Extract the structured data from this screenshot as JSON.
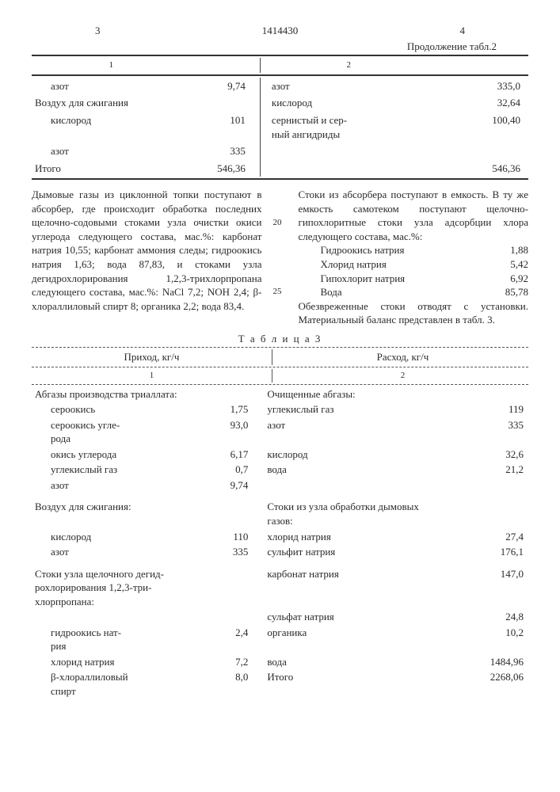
{
  "head": {
    "p3": "3",
    "pid": "1414430",
    "p4": "4"
  },
  "cont_label": "Продолжение табл.2",
  "t2": {
    "h1": "1",
    "h2": "2",
    "rows_left": [
      {
        "label": "азот",
        "indent": true,
        "val": "9,74"
      },
      {
        "label": "Воздух для сжигания",
        "indent": false,
        "val": ""
      },
      {
        "label": "кислород",
        "indent": true,
        "val": "101"
      },
      {
        "label": "азот",
        "indent": true,
        "val": "335"
      },
      {
        "label": "Итого",
        "indent": false,
        "val": "546,36"
      }
    ],
    "rows_right": [
      {
        "label": "азот",
        "val": "335,0"
      },
      {
        "label": "кислород",
        "val": "32,64"
      },
      {
        "label": "сернистый и сер-\nный ангидриды",
        "val": "100,40"
      },
      {
        "label": "",
        "val": ""
      },
      {
        "label": "",
        "val": "546,36"
      }
    ]
  },
  "para_left": "Дымовые газы из циклонной топки поступают в абсорбер, где происходит обработка последних щелочно-содовыми стоками узла очистки окиси углерода следующего состава, мас.%: карбонат натрия 10,55; карбонат аммония следы; гидроокись натрия 1,63; вода 87,83, и стоками узла дегидрохлорирования 1,2,3-трихлорпропана следующего состава, мас.%: NaCl 7,2; NOH 2,4; β-хлораллиловый спирт 8; органика 2,2; вода 83,4.",
  "para_right_top": "Стоки из абсорбера поступают в емкость. В ту же емкость самотеком поступают щелочно-гипохлоритные стоки узла адсорбции хлора следующего состава, мас.%:",
  "comp": [
    {
      "lab": "Гидроокись натрия",
      "val": "1,88"
    },
    {
      "lab": "Хлорид натрия",
      "val": "5,42"
    },
    {
      "lab": "Гипохлорит натрия",
      "val": "6,92"
    },
    {
      "lab": "Вода",
      "val": "85,78"
    }
  ],
  "para_right_bot": "Обезвреженные стоки отводят с установки. Материальный баланс представлен в табл. 3.",
  "margin_nums": {
    "n20": "20",
    "n25": "25"
  },
  "t3title": "Т а б л и ц а   3",
  "t3head": {
    "l": "Приход, кг/ч",
    "r": "Расход, кг/ч",
    "h1": "1",
    "h2": "2"
  },
  "t3": [
    {
      "a1": "Абгазы производства триаллата:",
      "a2": "",
      "a3": "Очищенные абгазы:",
      "a4": ""
    },
    {
      "a1": "сероокись",
      "ind": true,
      "a2": "1,75",
      "a3": "углекислый газ",
      "a4": "119"
    },
    {
      "a1": "сероокись угле-\nрода",
      "ind": true,
      "a2": "93,0",
      "a3": "азот",
      "a4": "335"
    },
    {
      "a1": "окись углерода",
      "ind": true,
      "a2": "6,17",
      "a3": "кислород",
      "a4": "32,6"
    },
    {
      "a1": "углекислый газ",
      "ind": true,
      "a2": "0,7",
      "a3": "вода",
      "a4": "21,2"
    },
    {
      "a1": "азот",
      "ind": true,
      "a2": "9,74",
      "a3": "",
      "a4": ""
    },
    {
      "gap": true
    },
    {
      "a1": "Воздух для сжигания:",
      "a2": "",
      "a3": "Стоки из узла обработки дымовых газов:",
      "a4": ""
    },
    {
      "a1": "кислород",
      "ind": true,
      "a2": "110",
      "a3": "хлорид натрия",
      "a4": "27,4"
    },
    {
      "a1": "азот",
      "ind": true,
      "a2": "335",
      "a3": "сульфит натрия",
      "a4": "176,1"
    },
    {
      "gap": true
    },
    {
      "a1": "Стоки узла щелочного дегид-\nрохлорирования 1,2,3-три-\nхлорпропана:",
      "a2": "",
      "a3": "карбонат натрия",
      "a4": "147,0"
    },
    {
      "a1": "",
      "a2": "",
      "a3": "сульфат натрия",
      "a4": "24,8"
    },
    {
      "a1": "гидроокись нат-\nрия",
      "ind": true,
      "a2": "2,4",
      "a3": "органика",
      "a4": "10,2"
    },
    {
      "a1": "хлорид натрия",
      "ind": true,
      "a2": "7,2",
      "a3": "вода",
      "a4": "1484,96"
    },
    {
      "a1": "β-хлораллиловый\nспирт",
      "ind": true,
      "a2": "8,0",
      "a3": "Итого",
      "a4": "2268,06"
    }
  ]
}
